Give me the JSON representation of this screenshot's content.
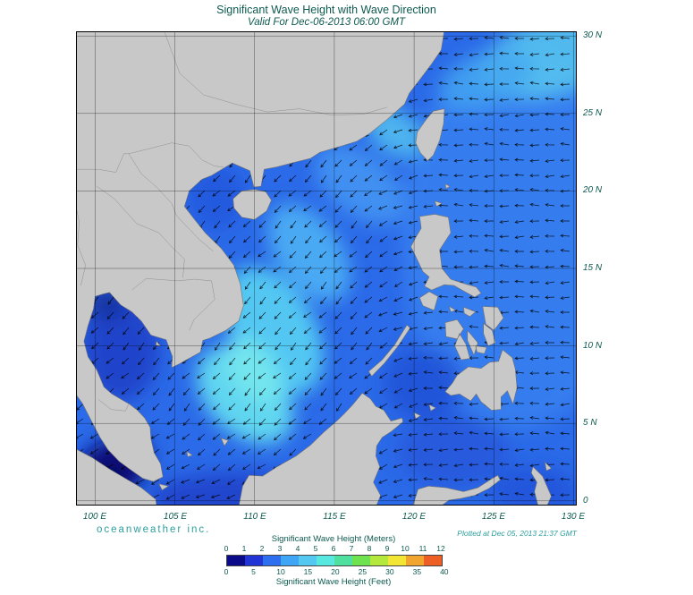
{
  "title": "Significant Wave Height with Wave Direction",
  "subtitle": "Valid For Dec-06-2013 06:00 GMT",
  "branding": "oceanweather inc.",
  "plotted_at": "Plotted at Dec 05, 2013 21:37 GMT",
  "colors": {
    "heading_text": "#0d5a50",
    "axis_text": "#0d5a50",
    "brand_text": "#2f9e9e",
    "land": "#c8c8c8",
    "coast": "#707070",
    "ocean_base": "#2b6ae8",
    "grid": "#000000"
  },
  "axes": {
    "lat_labels": [
      "30 N",
      "25 N",
      "20 N",
      "15 N",
      "10 N",
      "5 N",
      "0"
    ],
    "lat_values": [
      30,
      25,
      20,
      15,
      10,
      5,
      0
    ],
    "lon_labels": [
      "100 E",
      "105 E",
      "110 E",
      "115 E",
      "120 E",
      "125 E",
      "130 E"
    ],
    "lon_values": [
      100,
      105,
      110,
      115,
      120,
      125,
      130
    ]
  },
  "legend": {
    "meters_label": "Significant Wave Height (Meters)",
    "feet_label": "Significant Wave Height (Feet)",
    "meters_ticks": [
      "0",
      "1",
      "2",
      "3",
      "4",
      "5",
      "6",
      "7",
      "8",
      "9",
      "10",
      "11",
      "12"
    ],
    "feet_ticks": [
      "0",
      "5",
      "10",
      "15",
      "20",
      "25",
      "30",
      "35",
      "40"
    ],
    "colors": [
      "#0b0b8a",
      "#2135d4",
      "#2e6ff0",
      "#3fa5f5",
      "#55c8f2",
      "#57e8e0",
      "#4fe0a0",
      "#6ee24f",
      "#b4e83c",
      "#f2e534",
      "#f2a52e",
      "#ee5f26"
    ]
  }
}
